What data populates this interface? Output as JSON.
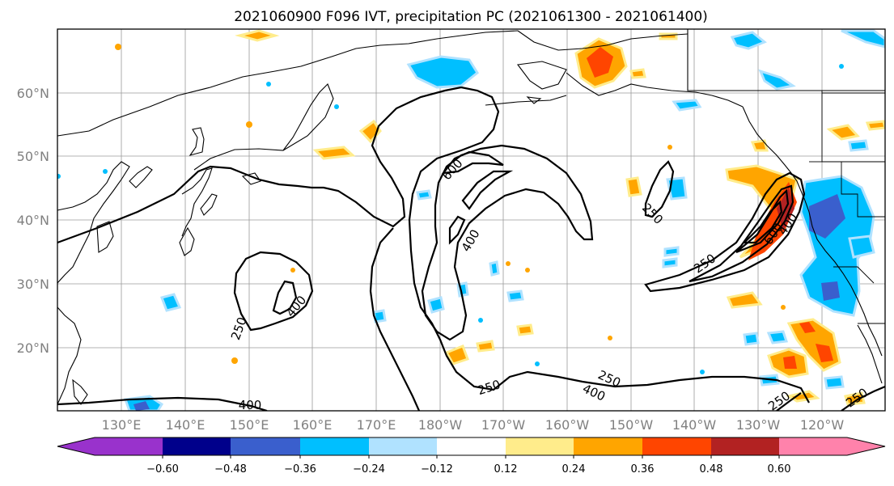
{
  "title": "2021060900 F096 IVT, precipitation PC (2021061300 - 2021061400)",
  "latitude_labels": [
    "60°N",
    "50°N",
    "40°N",
    "30°N",
    "20°N"
  ],
  "longitude_labels": [
    "130°E",
    "140°E",
    "150°E",
    "160°E",
    "170°E",
    "180°W",
    "170°W",
    "160°W",
    "150°W",
    "140°W",
    "130°W",
    "120°W"
  ],
  "colorbar": {
    "colors": [
      "#9932cc",
      "#00008b",
      "#3a5fcd",
      "#00bfff",
      "#b0e2ff",
      "#ffffff",
      "#ffec8b",
      "#ffa500",
      "#ff4500",
      "#b22222",
      "#ff82ab"
    ],
    "tick_labels": [
      "−0.60",
      "−0.48",
      "−0.36",
      "−0.24",
      "−0.12",
      "0.12",
      "0.24",
      "0.36",
      "0.48",
      "0.60"
    ]
  },
  "contour_labels": [
    {
      "id": "c600-north",
      "text": "600"
    },
    {
      "id": "c400-central",
      "text": "400"
    },
    {
      "id": "c250-gulf",
      "text": "250"
    },
    {
      "id": "c250-ne-pacific",
      "text": "250"
    },
    {
      "id": "c400-coast",
      "text": "400"
    },
    {
      "id": "c600-coast",
      "text": "600"
    },
    {
      "id": "c400-west",
      "text": "400"
    },
    {
      "id": "c250-west",
      "text": "250"
    },
    {
      "id": "c400-sw",
      "text": "400"
    },
    {
      "id": "c250-south",
      "text": "250"
    },
    {
      "id": "c250-se-1",
      "text": "250"
    },
    {
      "id": "c400-se",
      "text": "400"
    },
    {
      "id": "c250-se-2",
      "text": "250"
    },
    {
      "id": "c250-se-3",
      "text": "250"
    }
  ]
}
